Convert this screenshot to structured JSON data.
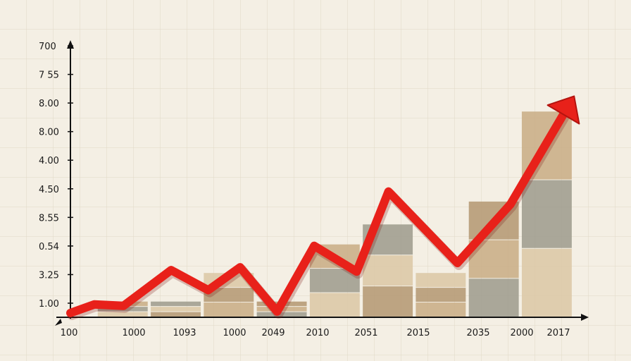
{
  "chart_data": {
    "type": "line",
    "title": "",
    "xlabel": "",
    "ylabel": "",
    "x_ticks": [
      "100",
      "1000",
      "1093",
      "1000",
      "2049",
      "2010",
      "2051",
      "2015",
      "2035",
      "2000",
      "2017"
    ],
    "y_ticks": [
      "1.00",
      "3.25",
      "0.54",
      "8.55",
      "4.50",
      "4.00",
      "8.00",
      "8.00",
      "7 55",
      "700"
    ],
    "ylim": [
      0,
      9.5
    ],
    "series": [
      {
        "color": "#e8211a",
        "points": [
          {
            "x": 0,
            "y": 0.15
          },
          {
            "x": 0.45,
            "y": 0.45
          },
          {
            "x": 1.0,
            "y": 0.4
          },
          {
            "x": 1.9,
            "y": 1.65
          },
          {
            "x": 2.6,
            "y": 0.95
          },
          {
            "x": 3.2,
            "y": 1.75
          },
          {
            "x": 3.9,
            "y": 0.2
          },
          {
            "x": 4.6,
            "y": 2.5
          },
          {
            "x": 5.4,
            "y": 1.6
          },
          {
            "x": 6.0,
            "y": 4.4
          },
          {
            "x": 7.3,
            "y": 1.9
          },
          {
            "x": 8.3,
            "y": 3.95
          },
          {
            "x": 9.3,
            "y": 7.1
          }
        ]
      }
    ],
    "background_bars": [
      {
        "x": 1.0,
        "value": 0.55
      },
      {
        "x": 2.0,
        "value": 0.55
      },
      {
        "x": 3.0,
        "value": 1.55
      },
      {
        "x": 4.0,
        "value": 0.55
      },
      {
        "x": 5.0,
        "value": 2.55
      },
      {
        "x": 6.0,
        "value": 3.25
      },
      {
        "x": 7.0,
        "value": 1.55
      },
      {
        "x": 8.0,
        "value": 4.05
      },
      {
        "x": 9.0,
        "value": 7.2
      }
    ],
    "arrow_color": "#e8211a",
    "axis_color": "#111111",
    "bar_colors": [
      "#c8ab84",
      "#9c9a8c",
      "#dac7a5",
      "#b39671"
    ]
  }
}
